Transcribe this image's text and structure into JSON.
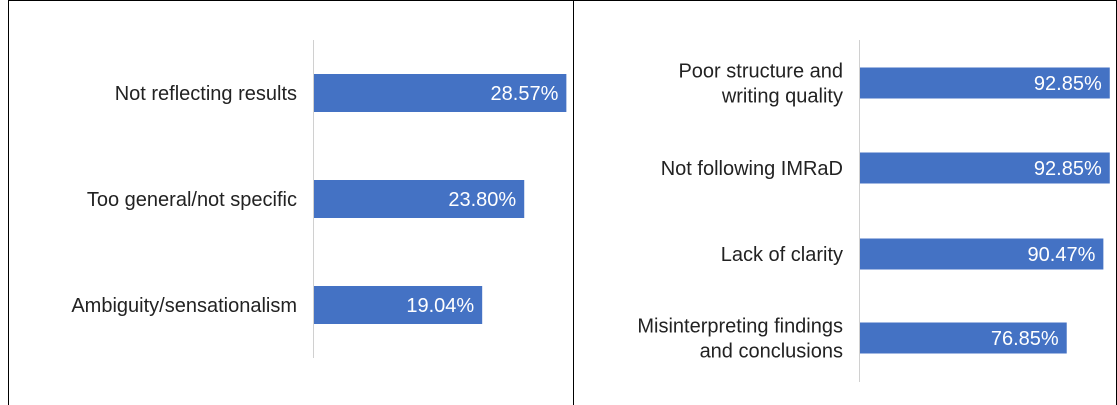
{
  "chart_data": [
    {
      "type": "bar",
      "orientation": "horizontal",
      "categories": [
        "Not reflecting results",
        "Too general/not specific",
        "Ambiguity/sensationalism"
      ],
      "values": [
        28.57,
        23.8,
        19.04
      ],
      "value_labels": [
        "28.57%",
        "23.80%",
        "19.04%"
      ],
      "title": "",
      "xlabel": "",
      "ylabel": "",
      "xlim": [
        0,
        30
      ],
      "grid": false,
      "color": "#4472C4"
    },
    {
      "type": "bar",
      "orientation": "horizontal",
      "categories": [
        [
          "Poor structure and",
          "writing quality"
        ],
        [
          "Not following IMRaD"
        ],
        [
          "Lack of clarity"
        ],
        [
          "Misinterpreting findings",
          "and conclusions"
        ]
      ],
      "values": [
        92.85,
        92.85,
        90.47,
        76.85
      ],
      "value_labels": [
        "92.85%",
        "92.85%",
        "90.47%",
        "76.85%"
      ],
      "title": "",
      "xlabel": "",
      "ylabel": "",
      "xlim": [
        0,
        100
      ],
      "grid": false,
      "color": "#4472C4"
    }
  ]
}
